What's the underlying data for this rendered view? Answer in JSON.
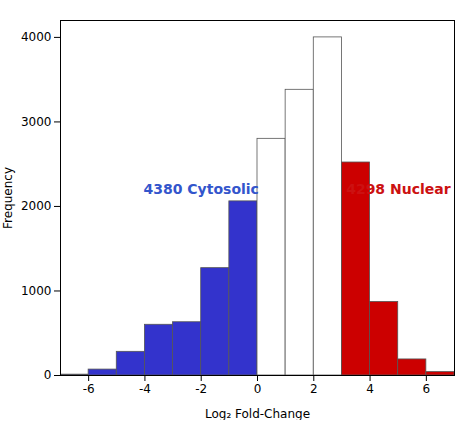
{
  "chart_data": {
    "type": "histogram",
    "xlabel": "Log₂ Fold-Change",
    "ylabel": "Frequency",
    "bins": [
      -7,
      -6,
      -5,
      -4,
      -3,
      -2,
      -1,
      0,
      1,
      2,
      3,
      4,
      5,
      6,
      7
    ],
    "values": [
      10,
      70,
      280,
      600,
      630,
      1270,
      2060,
      2800,
      3380,
      4000,
      2520,
      870,
      190,
      40
    ],
    "colors": [
      "#3333cc",
      "#3333cc",
      "#3333cc",
      "#3333cc",
      "#3333cc",
      "#3333cc",
      "#3333cc",
      "#ffffff",
      "#ffffff",
      "#ffffff",
      "#cc0000",
      "#cc0000",
      "#cc0000",
      "#cc0000"
    ],
    "xlim": [
      -7,
      7
    ],
    "ylim": [
      0,
      4200
    ],
    "xticks": [
      -6,
      -4,
      -2,
      0,
      2,
      4,
      6
    ],
    "yticks": [
      0,
      1000,
      2000,
      3000,
      4000
    ],
    "grid": false,
    "annotations": [
      {
        "text": "4380 Cytosolic",
        "x": -2.0,
        "y": 2200,
        "color": "#3355cc"
      },
      {
        "text": "4298 Nuclear",
        "x": 3.15,
        "y": 2200,
        "color": "#cc1111"
      }
    ]
  }
}
